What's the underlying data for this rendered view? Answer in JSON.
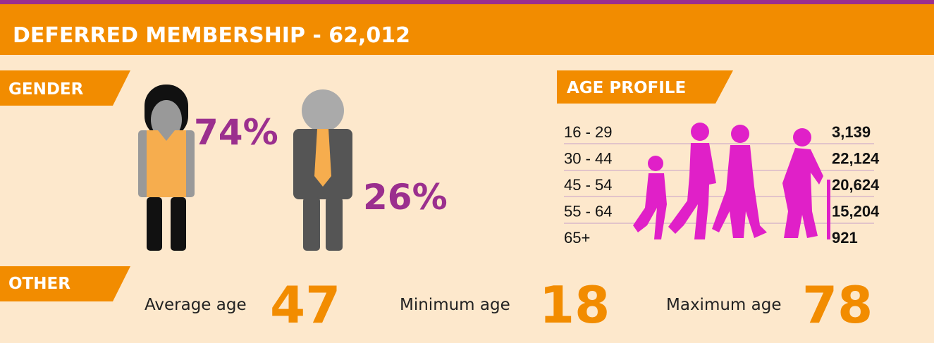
{
  "header": {
    "title": "DEFERRED MEMBERSHIP - 62,012"
  },
  "gender": {
    "label": "GENDER",
    "female": "74%",
    "male": "26%"
  },
  "age_profile": {
    "label": "AGE PROFILE",
    "rows": [
      [
        "16 - 29",
        "3,139"
      ],
      [
        "30 - 44",
        "22,124"
      ],
      [
        "45 - 54",
        "20,624"
      ],
      [
        "55 - 64",
        "15,204"
      ],
      [
        "65+",
        "921"
      ]
    ]
  },
  "other": {
    "label": "OTHER",
    "stats": [
      {
        "label": "Average age",
        "value": "47"
      },
      {
        "label": "Minimum age",
        "value": "18"
      },
      {
        "label": "Maximum age",
        "value": "78"
      }
    ]
  }
}
